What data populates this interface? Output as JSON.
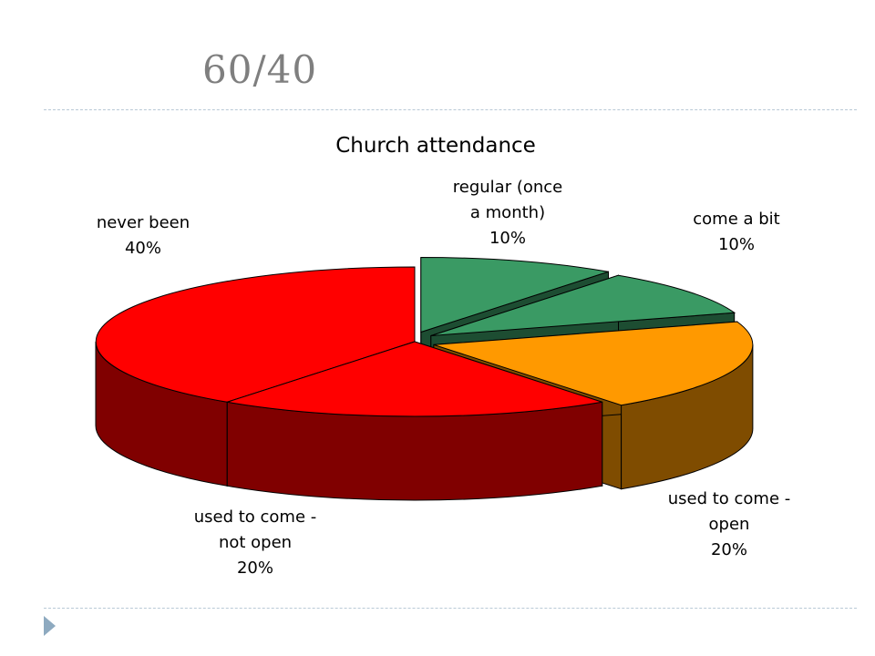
{
  "slide": {
    "title": "60/40"
  },
  "chart_data": {
    "type": "pie",
    "title": "Church attendance",
    "three_d": true,
    "slices": [
      {
        "label": [
          "regular (once",
          "a month)"
        ],
        "value": 10,
        "value_label": "10%",
        "color": "#3a9a64",
        "side_color": "#1d4d32",
        "exploded": true
      },
      {
        "label": [
          "come a bit"
        ],
        "value": 10,
        "value_label": "10%",
        "color": "#3a9a64",
        "side_color": "#1d4d32",
        "exploded": true
      },
      {
        "label": [
          "used to come -",
          "open"
        ],
        "value": 20,
        "value_label": "20%",
        "color": "#ff9900",
        "side_color": "#7f4c00",
        "exploded": true
      },
      {
        "label": [
          "used to come -",
          "not open"
        ],
        "value": 20,
        "value_label": "20%",
        "color": "#ff0000",
        "side_color": "#800000",
        "exploded": false
      },
      {
        "label": [
          "never been"
        ],
        "value": 40,
        "value_label": "40%",
        "color": "#ff0000",
        "side_color": "#800000",
        "exploded": false
      }
    ]
  }
}
